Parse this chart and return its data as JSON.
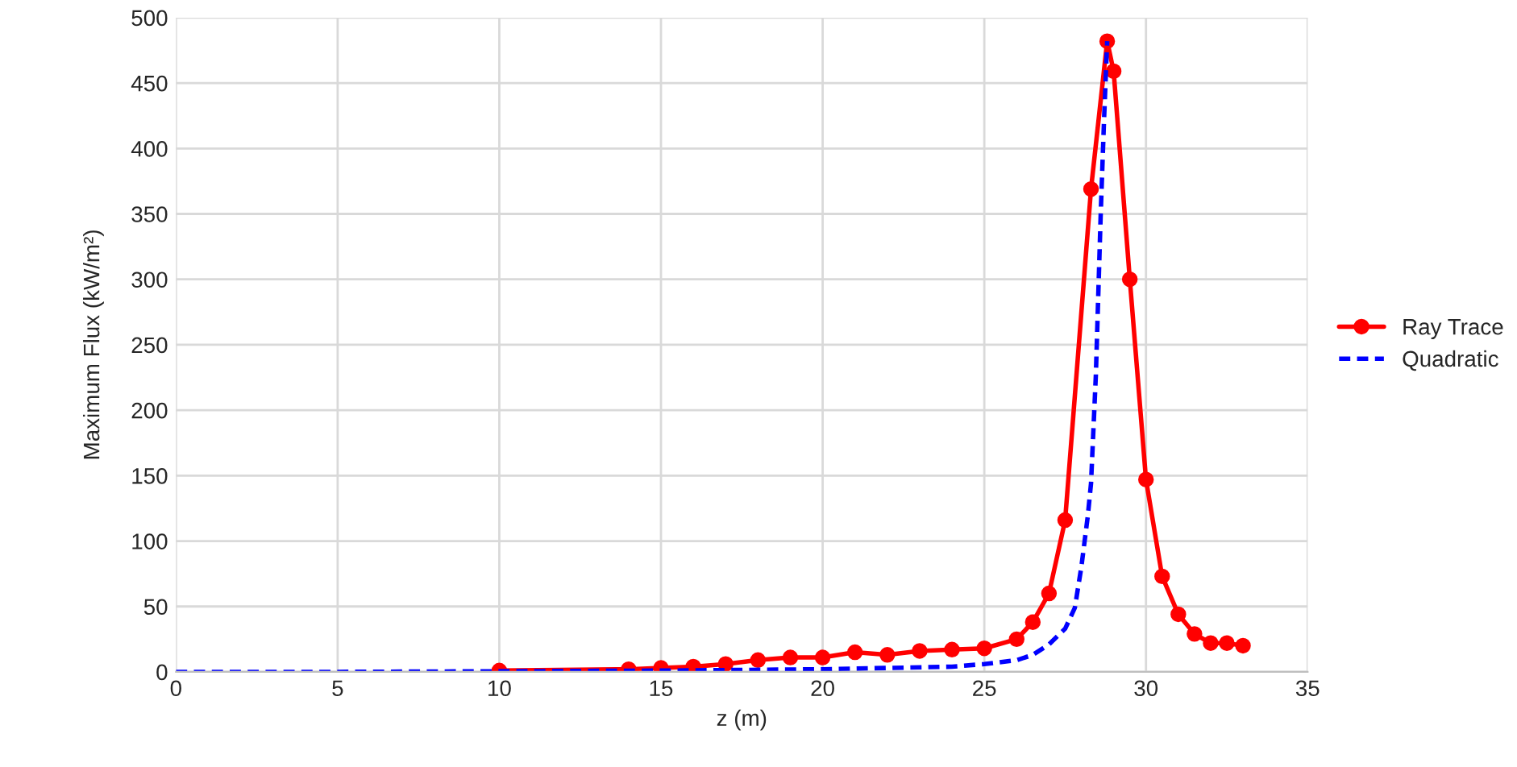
{
  "chart_data": {
    "type": "line",
    "xlabel": "z (m)",
    "ylabel": "Maximum Flux (kW/m²)",
    "xlim": [
      0,
      35
    ],
    "xticks": [
      0,
      5,
      10,
      15,
      20,
      25,
      30,
      35
    ],
    "ylim": [
      0,
      500
    ],
    "yticks": [
      0,
      50,
      100,
      150,
      200,
      250,
      300,
      350,
      400,
      450,
      500
    ],
    "grid": true,
    "legend": "right",
    "series": [
      {
        "name": "Ray Trace",
        "color": "#ff0000",
        "marker": "circle",
        "line_style": "solid",
        "x": [
          10,
          14,
          15,
          16,
          17,
          18,
          19,
          20,
          21,
          22,
          23,
          24,
          25,
          26,
          26.5,
          27,
          27.5,
          28.3,
          28.8,
          29,
          29.5,
          30,
          30.5,
          31,
          31.5,
          32,
          32.5,
          33
        ],
        "values": [
          1,
          2,
          3,
          4,
          6,
          9,
          11,
          11,
          15,
          13,
          16,
          17,
          18,
          25,
          38,
          60,
          116,
          369,
          482,
          459,
          300,
          147,
          73,
          44,
          29,
          22,
          22,
          20
        ]
      },
      {
        "name": "Quadratic",
        "color": "#0000ff",
        "marker": "none",
        "line_style": "dashed",
        "x": [
          0,
          5,
          10,
          15,
          20,
          22,
          24,
          25,
          26,
          26.5,
          27,
          27.5,
          27.8,
          28.0,
          28.2,
          28.3,
          28.45,
          28.6,
          28.7,
          28.8
        ],
        "values": [
          0,
          0,
          0.5,
          1,
          2,
          3,
          4,
          6,
          9,
          13,
          21,
          33,
          49,
          80,
          119,
          144,
          227,
          350,
          420,
          482
        ]
      }
    ]
  }
}
